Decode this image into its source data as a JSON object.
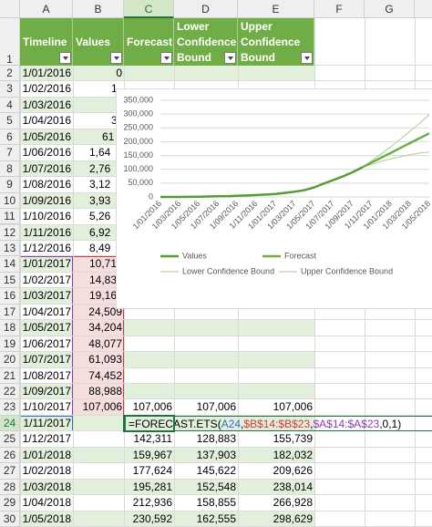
{
  "sheet": {
    "columns": [
      "A",
      "B",
      "C",
      "D",
      "E",
      "F",
      "G"
    ],
    "headers": [
      "Timeline",
      "Values",
      "Forecast",
      "Lower Confidence Bound",
      "Upper Confidence Bound"
    ],
    "row_numbers": [
      1,
      2,
      3,
      4,
      5,
      6,
      7,
      8,
      9,
      10,
      11,
      12,
      13,
      14,
      15,
      16,
      17,
      18,
      19,
      20,
      21,
      22,
      23,
      24,
      25,
      26,
      27,
      28,
      29,
      30
    ],
    "rows": [
      [
        "1/01/2016",
        "0",
        null,
        null,
        null
      ],
      [
        "1/02/2016",
        "1",
        null,
        null,
        null
      ],
      [
        "1/03/2016",
        null,
        null,
        null,
        null
      ],
      [
        "1/04/2016",
        "3",
        null,
        null,
        null
      ],
      [
        "1/05/2016",
        "61",
        null,
        null,
        null
      ],
      [
        "1/06/2016",
        "1,64",
        null,
        null,
        null
      ],
      [
        "1/07/2016",
        "2,76",
        null,
        null,
        null
      ],
      [
        "1/08/2016",
        "3,12",
        null,
        null,
        null
      ],
      [
        "1/09/2016",
        "3,93",
        null,
        null,
        null
      ],
      [
        "1/10/2016",
        "5,26",
        null,
        null,
        null
      ],
      [
        "1/11/2016",
        "6,92",
        null,
        null,
        null
      ],
      [
        "1/12/2016",
        "8,49",
        null,
        null,
        null
      ],
      [
        "1/01/2017",
        "10,71",
        null,
        null,
        null
      ],
      [
        "1/02/2017",
        "14,83",
        null,
        null,
        null
      ],
      [
        "1/03/2017",
        "19,16",
        null,
        null,
        null
      ],
      [
        "1/04/2017",
        "24,509",
        null,
        null,
        null
      ],
      [
        "1/05/2017",
        "34,204",
        null,
        null,
        null
      ],
      [
        "1/06/2017",
        "48,077",
        null,
        null,
        null
      ],
      [
        "1/07/2017",
        "61,093",
        null,
        null,
        null
      ],
      [
        "1/08/2017",
        "74,452",
        null,
        null,
        null
      ],
      [
        "1/09/2017",
        "88,988",
        null,
        null,
        null
      ],
      [
        "1/10/2017",
        "107,006",
        "107,006",
        "107,006",
        "107,006"
      ],
      [
        "1/11/2017",
        null,
        null,
        null,
        null
      ],
      [
        "1/12/2017",
        null,
        "142,311",
        "128,883",
        "155,739"
      ],
      [
        "1/01/2018",
        null,
        "159,967",
        "137,903",
        "182,032"
      ],
      [
        "1/02/2018",
        null,
        "177,624",
        "145,622",
        "209,626"
      ],
      [
        "1/03/2018",
        null,
        "195,281",
        "152,548",
        "238,014"
      ],
      [
        "1/04/2018",
        null,
        "212,936",
        "158,855",
        "266,928"
      ],
      [
        "1/05/2018",
        null,
        "230,592",
        "162,555",
        "298,629"
      ]
    ],
    "formula": [
      {
        "text": "=FORECAST.ETS(",
        "color": "#000000"
      },
      {
        "text": "A24",
        "color": "#2f6fd1"
      },
      {
        "text": ",",
        "color": "#000000"
      },
      {
        "text": "$B$14:$B$23",
        "color": "#d23a3a"
      },
      {
        "text": ",",
        "color": "#000000"
      },
      {
        "text": "$A$14:$A$23",
        "color": "#8a3fb0"
      },
      {
        "text": ",0,1)",
        "color": "#000000"
      }
    ]
  },
  "chart_data": {
    "type": "line",
    "categories": [
      "1/01/2016",
      null,
      "1/03/2016",
      null,
      "1/05/2016",
      null,
      "1/07/2016",
      null,
      "1/09/2016",
      null,
      "1/11/2016",
      null,
      "1/01/2017",
      null,
      "1/03/2017",
      null,
      "1/05/2017",
      null,
      "1/07/2017",
      null,
      "1/09/2017",
      null,
      "1/11/2017",
      null,
      "1/01/2018",
      null,
      "1/03/2018",
      null,
      "1/05/2018"
    ],
    "series": [
      {
        "name": "Values",
        "color": "#5a9a34",
        "width": 2.5,
        "values": [
          0,
          10,
          30,
          300,
          610,
          1640,
          2760,
          3120,
          3930,
          5260,
          6920,
          8490,
          10710,
          14830,
          19160,
          24509,
          34204,
          48077,
          61093,
          74452,
          88988,
          107006,
          null,
          null,
          null,
          null,
          null,
          null,
          null
        ]
      },
      {
        "name": "Forecast",
        "color": "#70ad47",
        "width": 2.5,
        "values": [
          null,
          null,
          null,
          null,
          null,
          null,
          null,
          null,
          null,
          null,
          null,
          null,
          null,
          null,
          null,
          null,
          null,
          null,
          null,
          null,
          null,
          107006,
          124654,
          142311,
          159967,
          177624,
          195281,
          212936,
          230592
        ]
      },
      {
        "name": "Lower Confidence Bound",
        "color": "#a9d08e",
        "width": 1,
        "values": [
          null,
          null,
          null,
          null,
          null,
          null,
          null,
          null,
          null,
          null,
          null,
          null,
          null,
          null,
          null,
          null,
          null,
          null,
          null,
          null,
          null,
          107006,
          118150,
          128883,
          137903,
          145622,
          152548,
          158855,
          162555
        ]
      },
      {
        "name": "Upper Confidence Bound",
        "color": "#a9d08e",
        "width": 1,
        "values": [
          null,
          null,
          null,
          null,
          null,
          null,
          null,
          null,
          null,
          null,
          null,
          null,
          null,
          null,
          null,
          null,
          null,
          null,
          null,
          null,
          null,
          107006,
          131150,
          155739,
          182032,
          209626,
          238014,
          266928,
          298629
        ]
      }
    ],
    "ylim": [
      0,
      350000
    ],
    "yticks": [
      0,
      {
        "value": 50000,
        "label": "50,000"
      },
      {
        "value": 100000,
        "label": "100,000"
      },
      {
        "value": 150000,
        "label": "150,000"
      },
      {
        "value": 200000,
        "label": "200,000"
      },
      {
        "value": 250000,
        "label": "250,000"
      },
      {
        "value": 300000,
        "label": "300,000"
      },
      {
        "value": 350000,
        "label": "350,000"
      }
    ],
    "grid": true,
    "legend": "bottom"
  }
}
